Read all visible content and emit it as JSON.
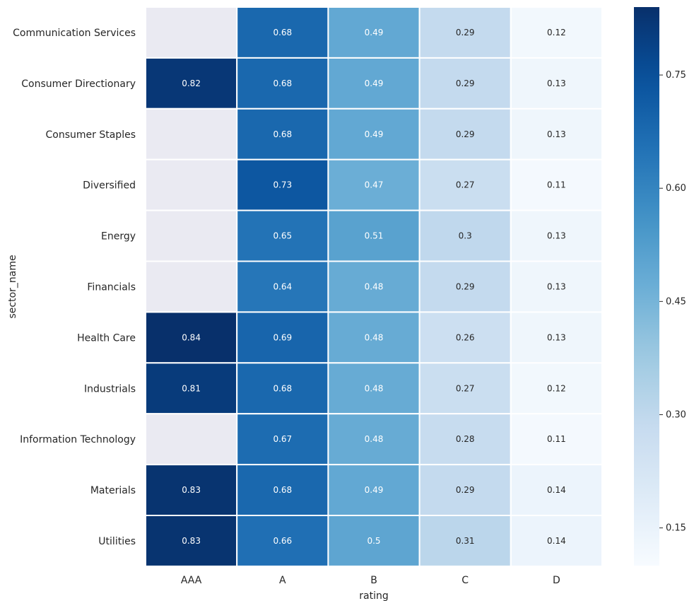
{
  "chart_data": {
    "type": "heatmap",
    "xlabel": "rating",
    "ylabel": "sector_name",
    "x_categories": [
      "AAA",
      "A",
      "B",
      "C",
      "D"
    ],
    "y_categories": [
      "Communication Services",
      "Consumer Directionary",
      "Consumer Staples",
      "Diversified",
      "Energy",
      "Financials",
      "Health Care",
      "Industrials",
      "Information Technology",
      "Materials",
      "Utilities"
    ],
    "values": [
      [
        null,
        0.68,
        0.49,
        0.29,
        0.12
      ],
      [
        0.82,
        0.68,
        0.49,
        0.29,
        0.13
      ],
      [
        null,
        0.68,
        0.49,
        0.29,
        0.13
      ],
      [
        null,
        0.73,
        0.47,
        0.27,
        0.11
      ],
      [
        null,
        0.65,
        0.51,
        0.3,
        0.13
      ],
      [
        null,
        0.64,
        0.48,
        0.29,
        0.13
      ],
      [
        0.84,
        0.69,
        0.48,
        0.26,
        0.13
      ],
      [
        0.81,
        0.68,
        0.48,
        0.27,
        0.12
      ],
      [
        null,
        0.67,
        0.48,
        0.28,
        0.11
      ],
      [
        0.83,
        0.68,
        0.49,
        0.29,
        0.14
      ],
      [
        0.83,
        0.66,
        0.5,
        0.31,
        0.14
      ]
    ],
    "labels": [
      [
        "",
        "0.68",
        "0.49",
        "0.29",
        "0.12"
      ],
      [
        "0.82",
        "0.68",
        "0.49",
        "0.29",
        "0.13"
      ],
      [
        "",
        "0.68",
        "0.49",
        "0.29",
        "0.13"
      ],
      [
        "",
        "0.73",
        "0.47",
        "0.27",
        "0.11"
      ],
      [
        "",
        "0.65",
        "0.51",
        "0.3",
        "0.13"
      ],
      [
        "",
        "0.64",
        "0.48",
        "0.29",
        "0.13"
      ],
      [
        "0.84",
        "0.69",
        "0.48",
        "0.26",
        "0.13"
      ],
      [
        "0.81",
        "0.68",
        "0.48",
        "0.27",
        "0.12"
      ],
      [
        "",
        "0.67",
        "0.48",
        "0.28",
        "0.11"
      ],
      [
        "0.83",
        "0.68",
        "0.49",
        "0.29",
        "0.14"
      ],
      [
        "0.83",
        "0.66",
        "0.5",
        "0.31",
        "0.14"
      ]
    ],
    "colormap": "Blues",
    "missing_color": "#eaeaf2",
    "vmin": 0.1,
    "vmax": 0.84,
    "colorbar_ticks": [
      0.15,
      0.3,
      0.45,
      0.6,
      0.75
    ],
    "colorbar_tick_labels": [
      "0.15",
      "0.30",
      "0.45",
      "0.60",
      "0.75"
    ]
  }
}
